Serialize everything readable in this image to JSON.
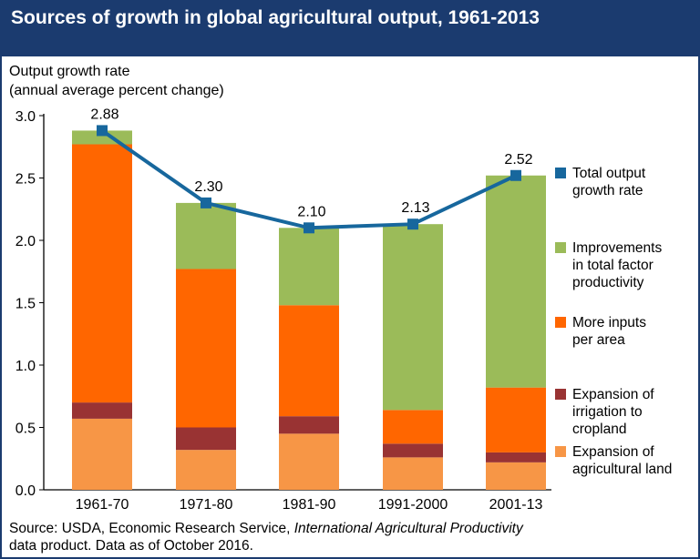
{
  "title": "Sources of growth in global agricultural output, 1961-2013",
  "source": {
    "prefix": "Source: USDA, Economic Research Service, ",
    "italic": "International Agricultural Productivity",
    "suffix": "data product. Data as of October 2016."
  },
  "chart_data": {
    "type": "bar",
    "stacked": true,
    "title": "Sources of growth in global agricultural output, 1961-2013",
    "ylabel_line1": "Output growth rate",
    "ylabel_line2": "(annual average percent change)",
    "xlabel": "",
    "ylim": [
      0,
      3.0
    ],
    "yticks": [
      "0.0",
      "0.5",
      "1.0",
      "1.5",
      "2.0",
      "2.5",
      "3.0"
    ],
    "grid": false,
    "legend_position": "right",
    "categories": [
      "1961-70",
      "1971-80",
      "1981-90",
      "1991-2000",
      "2001-13"
    ],
    "series": [
      {
        "name": "Expansion of agricultural land",
        "color": "#f79646",
        "values": [
          0.57,
          0.32,
          0.45,
          0.26,
          0.22
        ]
      },
      {
        "name": "Expansion of irrigation to cropland",
        "color": "#993333",
        "values": [
          0.13,
          0.18,
          0.14,
          0.11,
          0.08
        ]
      },
      {
        "name": "More inputs per area",
        "color": "#ff6600",
        "values": [
          2.07,
          1.27,
          0.89,
          0.27,
          0.52
        ]
      },
      {
        "name": "Improvements in total factor productivity",
        "color": "#9bbb59",
        "values": [
          0.11,
          0.53,
          0.62,
          1.49,
          1.7
        ]
      }
    ],
    "line": {
      "name": "Total output growth rate",
      "color": "#17679d",
      "values": [
        2.88,
        2.3,
        2.1,
        2.13,
        2.52
      ],
      "labels": [
        "2.88",
        "2.30",
        "2.10",
        "2.13",
        "2.52"
      ]
    },
    "legend": [
      {
        "lines": [
          "Total output",
          "growth rate"
        ],
        "color": "#17679d"
      },
      {
        "lines": [
          "Improvements",
          "in total factor",
          "productivity"
        ],
        "color": "#9bbb59"
      },
      {
        "lines": [
          "More inputs",
          "per area"
        ],
        "color": "#ff6600"
      },
      {
        "lines": [
          "Expansion of",
          "irrigation to",
          "cropland"
        ],
        "color": "#993333"
      },
      {
        "lines": [
          "Expansion of",
          "agricultural land"
        ],
        "color": "#f79646"
      }
    ]
  }
}
